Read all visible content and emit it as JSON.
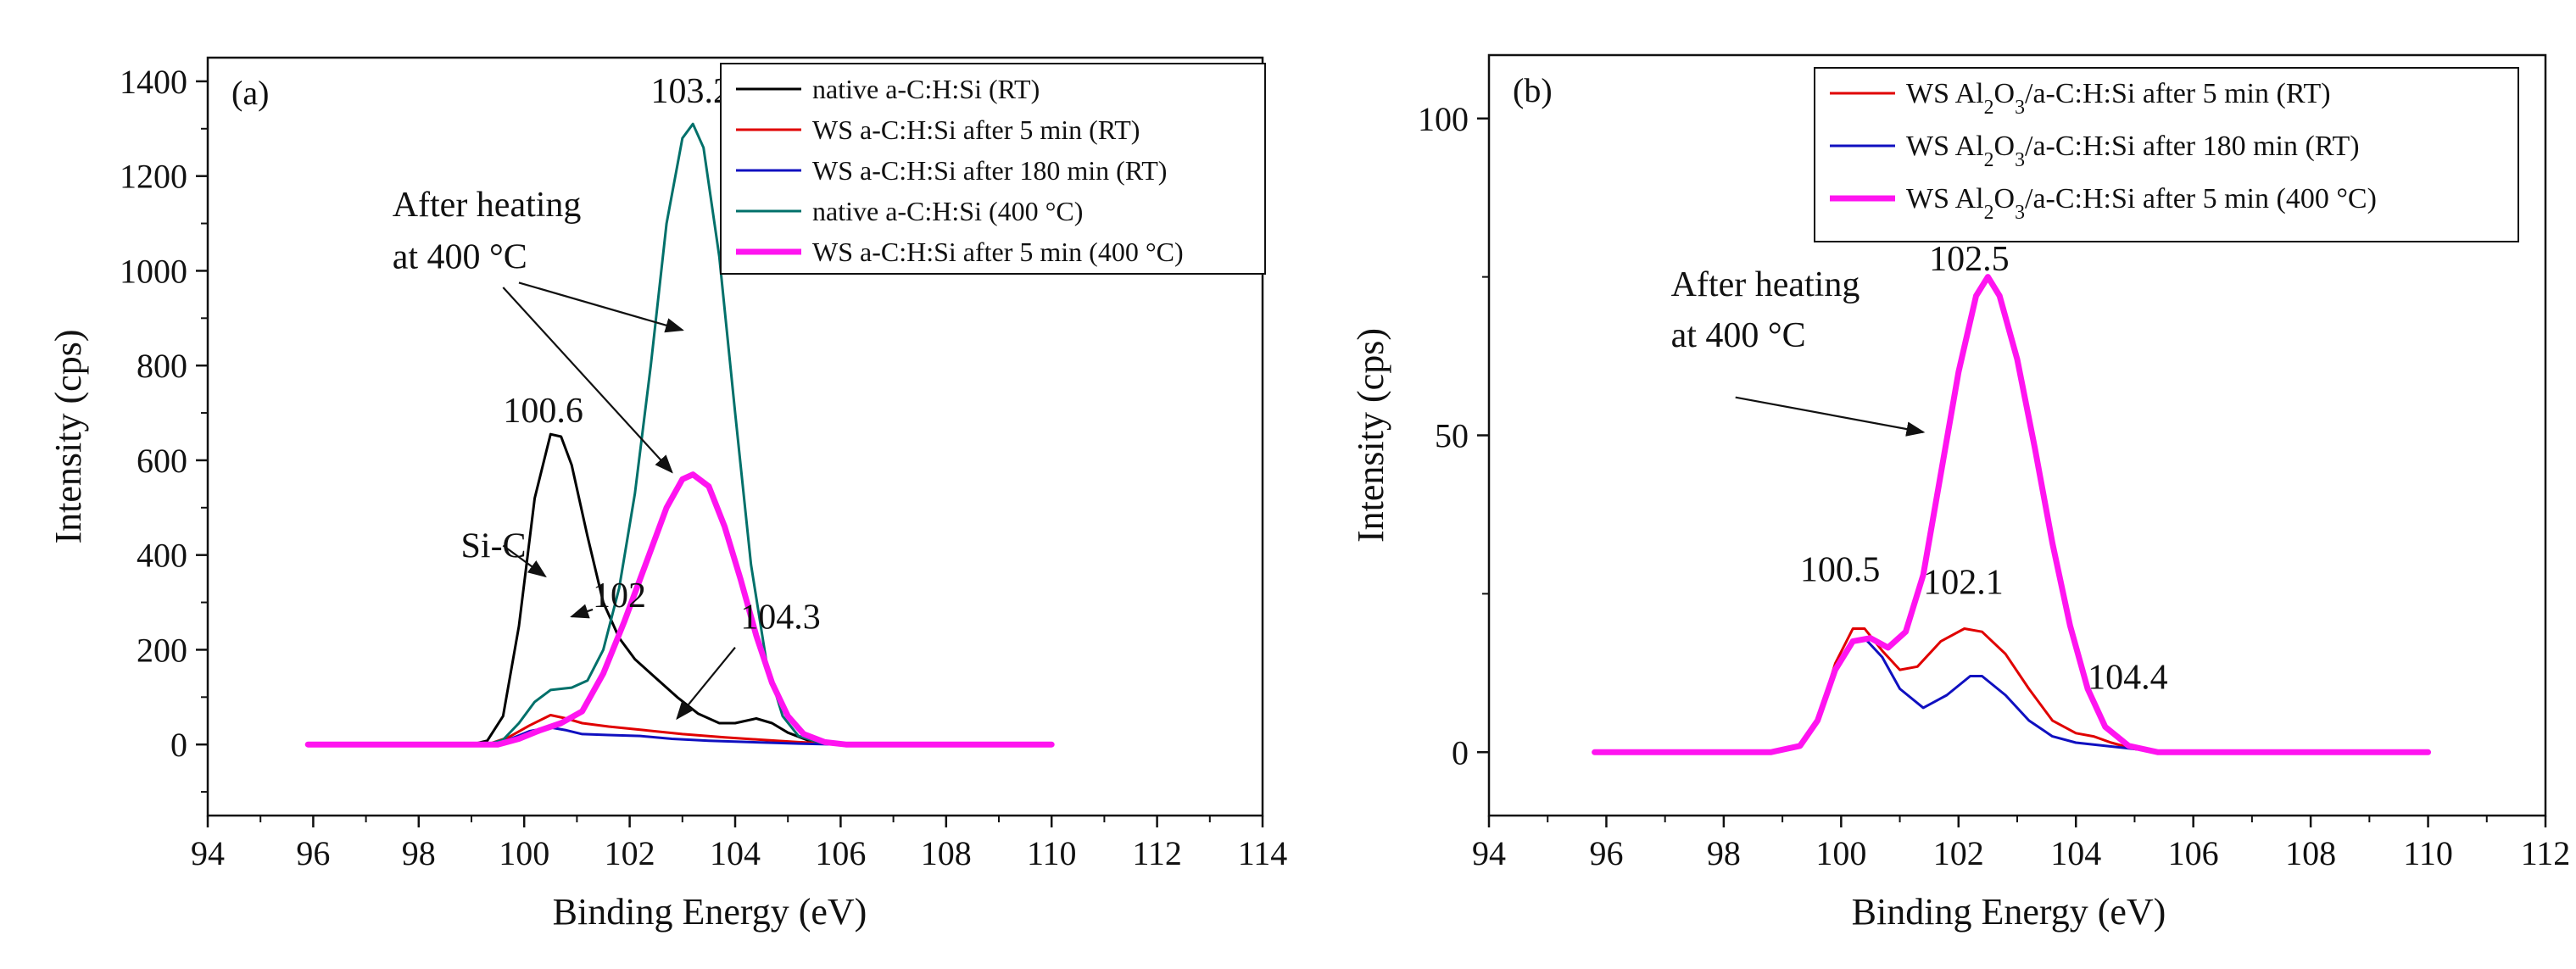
{
  "chart_data": [
    {
      "type": "line",
      "panel_label": "(a)",
      "xlabel": "Binding Energy (eV)",
      "ylabel": "Intensity (cps)",
      "xlim": [
        94,
        114
      ],
      "ylim": [
        -150,
        1450
      ],
      "xticks": [
        94,
        96,
        98,
        100,
        102,
        104,
        106,
        108,
        110,
        112,
        114
      ],
      "yticks": [
        0,
        200,
        400,
        600,
        800,
        1000,
        1200,
        1400
      ],
      "legend_position": "top-right",
      "series": [
        {
          "name": "native a-C:H:Si (RT)",
          "color": "#000000",
          "width": 3,
          "points": [
            [
              95.9,
              0
            ],
            [
              99.0,
              0
            ],
            [
              99.3,
              8
            ],
            [
              99.6,
              60
            ],
            [
              99.9,
              250
            ],
            [
              100.2,
              520
            ],
            [
              100.5,
              655
            ],
            [
              100.7,
              650
            ],
            [
              100.9,
              590
            ],
            [
              101.2,
              440
            ],
            [
              101.5,
              300
            ],
            [
              101.8,
              225
            ],
            [
              102.1,
              180
            ],
            [
              102.5,
              140
            ],
            [
              102.9,
              100
            ],
            [
              103.3,
              65
            ],
            [
              103.7,
              45
            ],
            [
              104.0,
              45
            ],
            [
              104.4,
              55
            ],
            [
              104.7,
              45
            ],
            [
              105.0,
              25
            ],
            [
              105.4,
              8
            ],
            [
              105.8,
              2
            ],
            [
              106.5,
              0
            ],
            [
              110.0,
              0
            ]
          ]
        },
        {
          "name": "WS a-C:H:Si after 5 min (RT)",
          "color": "#e00000",
          "width": 3,
          "points": [
            [
              95.9,
              0
            ],
            [
              99.3,
              0
            ],
            [
              99.7,
              15
            ],
            [
              100.1,
              40
            ],
            [
              100.5,
              62
            ],
            [
              100.8,
              55
            ],
            [
              101.1,
              45
            ],
            [
              101.6,
              38
            ],
            [
              102.3,
              30
            ],
            [
              103.0,
              22
            ],
            [
              103.8,
              15
            ],
            [
              104.5,
              10
            ],
            [
              105.2,
              5
            ],
            [
              106.0,
              1
            ],
            [
              110.0,
              0
            ]
          ]
        },
        {
          "name": "WS a-C:H:Si after 180 min (RT)",
          "color": "#1010c0",
          "width": 3,
          "points": [
            [
              95.9,
              0
            ],
            [
              99.3,
              0
            ],
            [
              99.7,
              10
            ],
            [
              100.1,
              28
            ],
            [
              100.5,
              36
            ],
            [
              100.8,
              30
            ],
            [
              101.1,
              22
            ],
            [
              101.6,
              20
            ],
            [
              102.2,
              18
            ],
            [
              102.8,
              12
            ],
            [
              103.5,
              8
            ],
            [
              104.3,
              5
            ],
            [
              105.2,
              2
            ],
            [
              106.0,
              0
            ],
            [
              110.0,
              0
            ]
          ]
        },
        {
          "name": "native a-C:H:Si (400 °C)",
          "color": "#00706a",
          "width": 3,
          "points": [
            [
              95.9,
              0
            ],
            [
              99.3,
              0
            ],
            [
              99.6,
              10
            ],
            [
              99.9,
              45
            ],
            [
              100.2,
              90
            ],
            [
              100.5,
              115
            ],
            [
              100.9,
              120
            ],
            [
              101.2,
              135
            ],
            [
              101.5,
              200
            ],
            [
              101.8,
              330
            ],
            [
              102.1,
              530
            ],
            [
              102.4,
              800
            ],
            [
              102.7,
              1100
            ],
            [
              103.0,
              1280
            ],
            [
              103.2,
              1310
            ],
            [
              103.4,
              1260
            ],
            [
              103.7,
              1030
            ],
            [
              104.0,
              700
            ],
            [
              104.3,
              380
            ],
            [
              104.6,
              170
            ],
            [
              104.9,
              60
            ],
            [
              105.2,
              18
            ],
            [
              105.6,
              4
            ],
            [
              106.0,
              0
            ],
            [
              110.0,
              0
            ]
          ]
        },
        {
          "name": "WS a-C:H:Si after 5 min (400 °C)",
          "color": "#ff14f0",
          "width": 7,
          "points": [
            [
              95.9,
              0
            ],
            [
              99.5,
              0
            ],
            [
              99.9,
              12
            ],
            [
              100.3,
              30
            ],
            [
              100.7,
              45
            ],
            [
              101.1,
              70
            ],
            [
              101.5,
              150
            ],
            [
              101.9,
              260
            ],
            [
              102.3,
              380
            ],
            [
              102.7,
              500
            ],
            [
              103.0,
              560
            ],
            [
              103.2,
              570
            ],
            [
              103.5,
              545
            ],
            [
              103.8,
              460
            ],
            [
              104.1,
              350
            ],
            [
              104.4,
              230
            ],
            [
              104.7,
              130
            ],
            [
              105.0,
              60
            ],
            [
              105.3,
              22
            ],
            [
              105.7,
              5
            ],
            [
              106.1,
              0
            ],
            [
              110.0,
              0
            ]
          ]
        }
      ],
      "annotations": [
        {
          "text": "103.2",
          "x": 102.4,
          "y": 1355
        },
        {
          "text": "100.6",
          "x": 99.6,
          "y": 680
        },
        {
          "text": "After heating",
          "x": 97.5,
          "y": 1115
        },
        {
          "text": "at 400 °C",
          "x": 97.5,
          "y": 1005
        },
        {
          "text": "Si-C",
          "x": 98.8,
          "y": 395
        },
        {
          "text": "102",
          "x": 101.3,
          "y": 290
        },
        {
          "text": "104.3",
          "x": 104.1,
          "y": 245
        }
      ],
      "arrows": [
        {
          "from": [
            99.9,
            975
          ],
          "to": [
            103.0,
            875
          ]
        },
        {
          "from": [
            99.6,
            965
          ],
          "to": [
            102.8,
            575
          ]
        },
        {
          "from": [
            99.6,
            420
          ],
          "to": [
            100.4,
            355
          ]
        },
        {
          "from": [
            101.3,
            285
          ],
          "to": [
            100.9,
            270
          ]
        },
        {
          "from": [
            104.0,
            205
          ],
          "to": [
            102.9,
            55
          ]
        }
      ]
    },
    {
      "type": "line",
      "panel_label": "(b)",
      "xlabel": "Binding Energy (eV)",
      "ylabel": "Intensity (cps)",
      "xlim": [
        94,
        112
      ],
      "ylim": [
        -10,
        110
      ],
      "xticks": [
        94,
        96,
        98,
        100,
        102,
        104,
        106,
        108,
        110,
        112
      ],
      "yticks": [
        0,
        50,
        100
      ],
      "legend_position": "top-right",
      "series": [
        {
          "name": "WS Al2O3/a-C:H:Si after 5 min (RT)",
          "color": "#e00000",
          "width": 3,
          "points": [
            [
              95.8,
              0
            ],
            [
              98.8,
              0
            ],
            [
              99.3,
              1
            ],
            [
              99.6,
              5
            ],
            [
              99.9,
              14
            ],
            [
              100.2,
              19.5
            ],
            [
              100.4,
              19.5
            ],
            [
              100.7,
              16
            ],
            [
              101.0,
              13
            ],
            [
              101.3,
              13.5
            ],
            [
              101.7,
              17.5
            ],
            [
              102.1,
              19.5
            ],
            [
              102.4,
              19
            ],
            [
              102.8,
              15.5
            ],
            [
              103.2,
              10
            ],
            [
              103.6,
              5
            ],
            [
              104.0,
              3
            ],
            [
              104.3,
              2.5
            ],
            [
              104.6,
              1.5
            ],
            [
              105.0,
              0.5
            ],
            [
              105.5,
              0
            ],
            [
              110.0,
              0
            ]
          ]
        },
        {
          "name": "WS Al2O3/a-C:H:Si after 180 min (RT)",
          "color": "#1010c0",
          "width": 3,
          "points": [
            [
              95.8,
              0
            ],
            [
              98.8,
              0
            ],
            [
              99.3,
              1
            ],
            [
              99.6,
              5
            ],
            [
              99.9,
              13
            ],
            [
              100.2,
              17.5
            ],
            [
              100.4,
              18
            ],
            [
              100.7,
              15
            ],
            [
              101.0,
              10
            ],
            [
              101.4,
              7
            ],
            [
              101.8,
              9
            ],
            [
              102.2,
              12
            ],
            [
              102.4,
              12
            ],
            [
              102.8,
              9
            ],
            [
              103.2,
              5
            ],
            [
              103.6,
              2.5
            ],
            [
              104.0,
              1.5
            ],
            [
              104.5,
              1
            ],
            [
              105.0,
              0.5
            ],
            [
              105.5,
              0
            ],
            [
              110.0,
              0
            ]
          ]
        },
        {
          "name": "WS Al2O3/a-C:H:Si after 5 min (400 °C)",
          "color": "#ff14f0",
          "width": 7,
          "points": [
            [
              95.8,
              0
            ],
            [
              98.8,
              0
            ],
            [
              99.3,
              1
            ],
            [
              99.6,
              5
            ],
            [
              99.9,
              13
            ],
            [
              100.2,
              17.5
            ],
            [
              100.5,
              18
            ],
            [
              100.8,
              16.5
            ],
            [
              101.1,
              19
            ],
            [
              101.4,
              28
            ],
            [
              101.7,
              44
            ],
            [
              102.0,
              60
            ],
            [
              102.3,
              72
            ],
            [
              102.5,
              75
            ],
            [
              102.7,
              72
            ],
            [
              103.0,
              62
            ],
            [
              103.3,
              48
            ],
            [
              103.6,
              33
            ],
            [
              103.9,
              20
            ],
            [
              104.2,
              10
            ],
            [
              104.5,
              4
            ],
            [
              104.9,
              1
            ],
            [
              105.4,
              0
            ],
            [
              110.0,
              0
            ]
          ]
        }
      ],
      "annotations": [
        {
          "text": "102.5",
          "x": 101.5,
          "y": 76
        },
        {
          "text": "After heating",
          "x": 97.1,
          "y": 72
        },
        {
          "text": "at 400 °C",
          "x": 97.1,
          "y": 64
        },
        {
          "text": "100.5",
          "x": 99.3,
          "y": 27
        },
        {
          "text": "102.1",
          "x": 101.4,
          "y": 25
        },
        {
          "text": "104.4",
          "x": 104.2,
          "y": 10
        }
      ],
      "arrows": [
        {
          "from": [
            98.2,
            56
          ],
          "to": [
            101.4,
            50.5
          ]
        }
      ]
    }
  ]
}
